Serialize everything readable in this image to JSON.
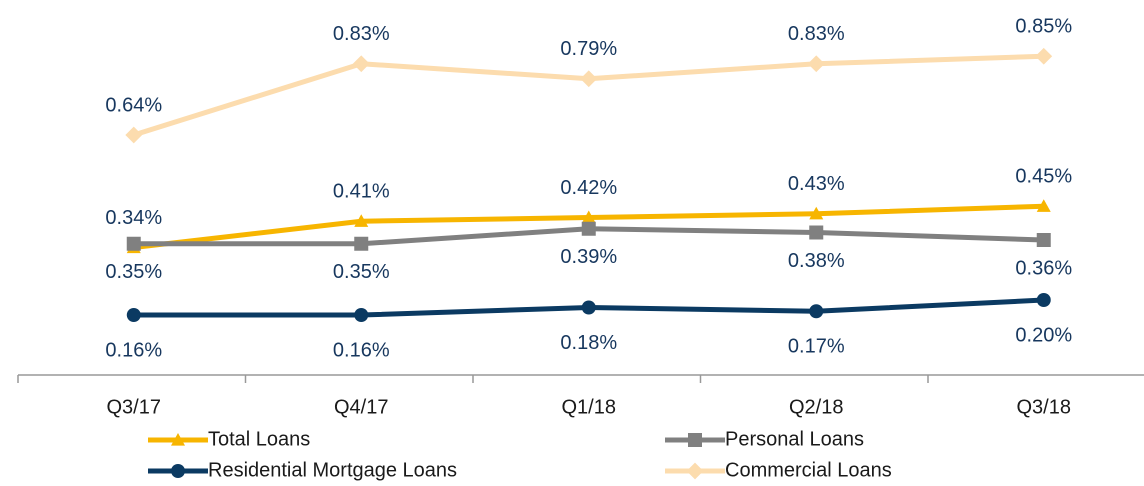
{
  "chart_data": {
    "type": "line",
    "categories": [
      "Q3/17",
      "Q4/17",
      "Q1/18",
      "Q2/18",
      "Q3/18"
    ],
    "ylim": [
      0,
      1.0
    ],
    "legend": "bottom",
    "series": [
      {
        "name": "Total Loans",
        "color": "#f7b500",
        "marker": "triangle",
        "label_position": "above",
        "values": [
          0.34,
          0.41,
          0.42,
          0.43,
          0.45
        ],
        "value_labels": [
          "0.34%",
          "0.41%",
          "0.42%",
          "0.43%",
          "0.45%"
        ]
      },
      {
        "name": "Personal Loans",
        "color": "#808080",
        "marker": "square",
        "label_position": "below",
        "values": [
          0.35,
          0.35,
          0.39,
          0.38,
          0.36
        ],
        "value_labels": [
          "0.35%",
          "0.35%",
          "0.39%",
          "0.38%",
          "0.36%"
        ]
      },
      {
        "name": "Residential Mortgage Loans",
        "color": "#0b3a62",
        "marker": "circle",
        "label_position": "below",
        "values": [
          0.16,
          0.16,
          0.18,
          0.17,
          0.2
        ],
        "value_labels": [
          "0.16%",
          "0.16%",
          "0.18%",
          "0.17%",
          "0.20%"
        ]
      },
      {
        "name": "Commercial Loans",
        "color": "#fcdcae",
        "marker": "diamond",
        "label_position": "above",
        "values": [
          0.64,
          0.83,
          0.79,
          0.83,
          0.85
        ],
        "value_labels": [
          "0.64%",
          "0.83%",
          "0.79%",
          "0.83%",
          "0.85%"
        ]
      }
    ]
  }
}
